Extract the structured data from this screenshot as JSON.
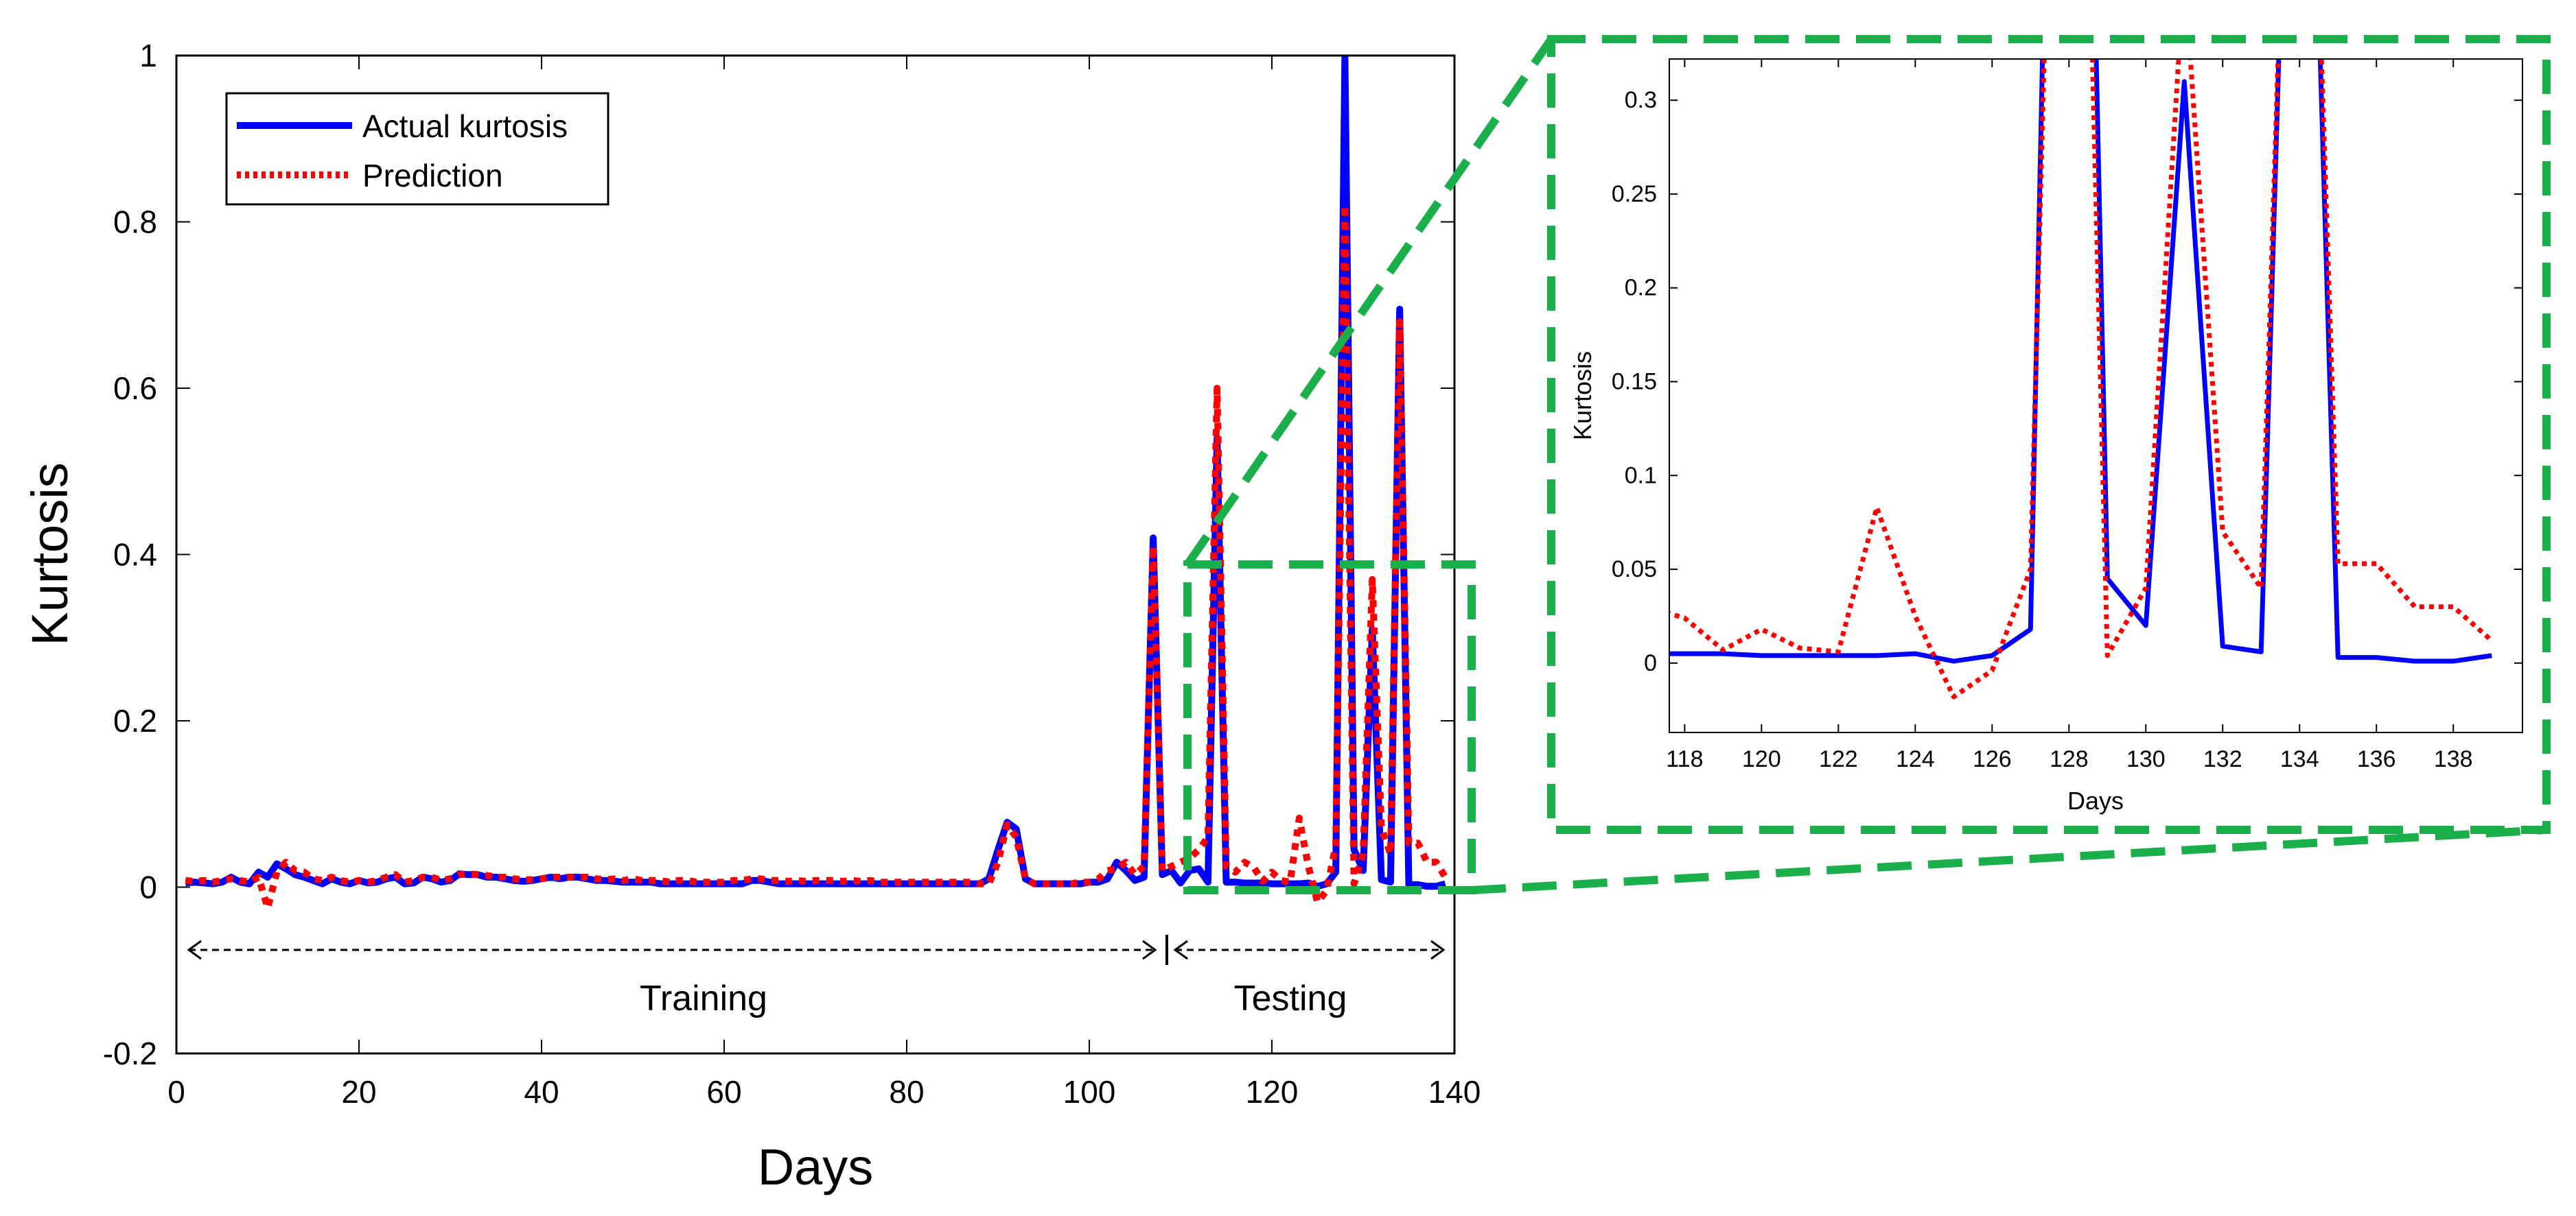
{
  "chart_data": [
    {
      "type": "line",
      "id": "main",
      "title": "",
      "xlabel": "Days",
      "ylabel": "Kurtosis",
      "xlim": [
        0,
        140
      ],
      "ylim": [
        -0.2,
        1
      ],
      "xticks": [
        0,
        20,
        40,
        60,
        80,
        100,
        120,
        140
      ],
      "xtick_labels": [
        "0",
        "20",
        "40",
        "60",
        "80",
        "100",
        "120",
        "140"
      ],
      "yticks": [
        -0.2,
        0,
        0.2,
        0.4,
        0.6,
        0.8,
        1
      ],
      "ytick_labels": [
        "-0.2",
        "0",
        "0.2",
        "0.4",
        "0.6",
        "0.8",
        "1"
      ],
      "legend": {
        "position": "top-left",
        "entries": [
          "Actual kurtosis",
          "Prediction"
        ]
      },
      "series": [
        {
          "name": "Actual kurtosis",
          "color": "#0000ff",
          "style": "solid",
          "x": [
            1,
            2,
            3,
            4,
            5,
            6,
            7,
            8,
            9,
            10,
            11,
            12,
            13,
            14,
            15,
            16,
            17,
            18,
            19,
            20,
            21,
            22,
            23,
            24,
            25,
            26,
            27,
            28,
            29,
            30,
            31,
            32,
            33,
            34,
            35,
            36,
            37,
            38,
            39,
            40,
            41,
            42,
            43,
            44,
            45,
            46,
            47,
            48,
            49,
            50,
            51,
            52,
            53,
            54,
            55,
            56,
            57,
            58,
            59,
            60,
            61,
            62,
            63,
            64,
            65,
            66,
            67,
            68,
            69,
            70,
            71,
            72,
            73,
            74,
            75,
            76,
            77,
            78,
            79,
            80,
            81,
            82,
            83,
            84,
            85,
            86,
            87,
            88,
            89,
            90,
            91,
            92,
            93,
            94,
            95,
            96,
            97,
            98,
            99,
            100,
            101,
            102,
            103,
            104,
            105,
            106,
            107,
            108,
            109,
            110,
            111,
            112,
            113,
            114,
            115,
            116,
            117,
            118,
            119,
            120,
            121,
            122,
            123,
            124,
            125,
            126,
            127,
            128,
            129,
            130,
            131,
            132,
            133,
            134,
            135,
            136,
            137,
            138,
            139
          ],
          "y": [
            0.005,
            0.006,
            0.005,
            0.004,
            0.006,
            0.012,
            0.006,
            0.004,
            0.018,
            0.012,
            0.028,
            0.022,
            0.015,
            0.012,
            0.008,
            0.004,
            0.01,
            0.006,
            0.004,
            0.008,
            0.005,
            0.006,
            0.01,
            0.012,
            0.004,
            0.005,
            0.012,
            0.01,
            0.006,
            0.008,
            0.016,
            0.015,
            0.015,
            0.012,
            0.012,
            0.01,
            0.008,
            0.007,
            0.008,
            0.01,
            0.012,
            0.01,
            0.012,
            0.012,
            0.01,
            0.008,
            0.008,
            0.007,
            0.006,
            0.006,
            0.006,
            0.006,
            0.004,
            0.004,
            0.004,
            0.004,
            0.004,
            0.004,
            0.004,
            0.004,
            0.004,
            0.004,
            0.008,
            0.008,
            0.006,
            0.004,
            0.004,
            0.004,
            0.004,
            0.004,
            0.004,
            0.004,
            0.004,
            0.004,
            0.004,
            0.004,
            0.004,
            0.004,
            0.004,
            0.004,
            0.004,
            0.004,
            0.004,
            0.004,
            0.004,
            0.004,
            0.004,
            0.004,
            0.01,
            0.045,
            0.078,
            0.07,
            0.01,
            0.004,
            0.004,
            0.004,
            0.004,
            0.004,
            0.004,
            0.006,
            0.006,
            0.01,
            0.03,
            0.02,
            0.008,
            0.012,
            0.42,
            0.015,
            0.02,
            0.005,
            0.02,
            0.022,
            0.006,
            0.54,
            0.006,
            0.006,
            0.005,
            0.005,
            0.005,
            0.004,
            0.004,
            0.004,
            0.004,
            0.005,
            0.001,
            0.004,
            0.018,
            1.0,
            0.045,
            0.02,
            0.31,
            0.009,
            0.006,
            0.695,
            0.003,
            0.003,
            0.001,
            0.001,
            0.004
          ]
        },
        {
          "name": "Prediction",
          "color": "#ff0000",
          "style": "dotted",
          "x": [
            1,
            2,
            3,
            4,
            5,
            6,
            7,
            8,
            9,
            10,
            11,
            12,
            13,
            14,
            15,
            16,
            17,
            18,
            19,
            20,
            21,
            22,
            23,
            24,
            25,
            26,
            27,
            28,
            29,
            30,
            31,
            32,
            33,
            34,
            35,
            36,
            37,
            38,
            39,
            40,
            41,
            42,
            43,
            44,
            45,
            46,
            47,
            48,
            49,
            50,
            51,
            52,
            53,
            54,
            55,
            56,
            57,
            58,
            59,
            60,
            61,
            62,
            63,
            64,
            65,
            66,
            67,
            68,
            69,
            70,
            71,
            72,
            73,
            74,
            75,
            76,
            77,
            78,
            79,
            80,
            81,
            82,
            83,
            84,
            85,
            86,
            87,
            88,
            89,
            90,
            91,
            92,
            93,
            94,
            95,
            96,
            97,
            98,
            99,
            100,
            101,
            102,
            103,
            104,
            105,
            106,
            107,
            108,
            109,
            110,
            111,
            112,
            113,
            114,
            115,
            116,
            117,
            118,
            119,
            120,
            121,
            122,
            123,
            124,
            125,
            126,
            127,
            128,
            129,
            130,
            131,
            132,
            133,
            134,
            135,
            136,
            137,
            138,
            139
          ],
          "y": [
            0.008,
            0.007,
            0.008,
            0.006,
            0.008,
            0.01,
            0.008,
            0.006,
            0.012,
            -0.025,
            0.018,
            0.03,
            0.02,
            0.018,
            0.01,
            0.008,
            0.012,
            0.008,
            0.006,
            0.008,
            0.006,
            0.008,
            0.012,
            0.015,
            0.006,
            0.008,
            0.012,
            0.012,
            0.008,
            0.01,
            0.015,
            0.016,
            0.015,
            0.014,
            0.012,
            0.012,
            0.01,
            0.009,
            0.009,
            0.01,
            0.012,
            0.012,
            0.012,
            0.012,
            0.012,
            0.01,
            0.009,
            0.01,
            0.008,
            0.01,
            0.008,
            0.008,
            0.008,
            0.006,
            0.008,
            0.008,
            0.006,
            0.006,
            0.006,
            0.006,
            0.008,
            0.008,
            0.01,
            0.01,
            0.008,
            0.008,
            0.007,
            0.008,
            0.007,
            0.008,
            0.008,
            0.008,
            0.007,
            0.008,
            0.007,
            0.008,
            0.006,
            0.006,
            0.006,
            0.006,
            0.006,
            0.006,
            0.006,
            0.006,
            0.006,
            0.006,
            0.006,
            0.004,
            0.004,
            0.03,
            0.075,
            0.06,
            0.01,
            0.004,
            0.004,
            0.004,
            0.004,
            0.004,
            0.006,
            0.006,
            0.01,
            0.02,
            0.022,
            0.03,
            0.015,
            0.025,
            0.41,
            0.02,
            0.025,
            0.03,
            0.035,
            0.045,
            0.06,
            0.6,
            0.025,
            0.018,
            0.03,
            0.024,
            0.007,
            0.018,
            0.008,
            0.006,
            0.083,
            0.025,
            -0.018,
            -0.004,
            0.05,
            0.82,
            0.004,
            0.04,
            0.37,
            0.07,
            0.04,
            0.68,
            0.053,
            0.053,
            0.03,
            0.03,
            0.012
          ]
        }
      ],
      "annotations": [
        {
          "type": "range-arrow",
          "label": "Training",
          "x_from": 1,
          "x_to": 108,
          "y": -0.07
        },
        {
          "type": "range-arrow",
          "label": "Testing",
          "x_from": 108,
          "x_to": 139,
          "y": -0.07
        },
        {
          "type": "zoom-box",
          "x_from": 111,
          "x_to": 140,
          "y_from": 0,
          "y_to": 0.39
        }
      ]
    },
    {
      "type": "line",
      "id": "inset",
      "title": "",
      "xlabel": "Days",
      "ylabel": "Kurtosis",
      "xlim": [
        117.6,
        139.8
      ],
      "ylim": [
        -0.037,
        0.322
      ],
      "xticks": [
        118,
        120,
        122,
        124,
        126,
        128,
        130,
        132,
        134,
        136,
        138
      ],
      "xtick_labels": [
        "118",
        "120",
        "122",
        "124",
        "126",
        "128",
        "130",
        "132",
        "134",
        "136",
        "138"
      ],
      "yticks": [
        0,
        0.05,
        0.1,
        0.15,
        0.2,
        0.25,
        0.3
      ],
      "ytick_labels": [
        "0",
        "0.05",
        "0.1",
        "0.15",
        "0.2",
        "0.25",
        "0.3"
      ],
      "series_source": "main",
      "series_note": "Same two series (Actual kurtosis, Prediction) shown for days 117.6-139.8 with clipping to the axes."
    }
  ]
}
